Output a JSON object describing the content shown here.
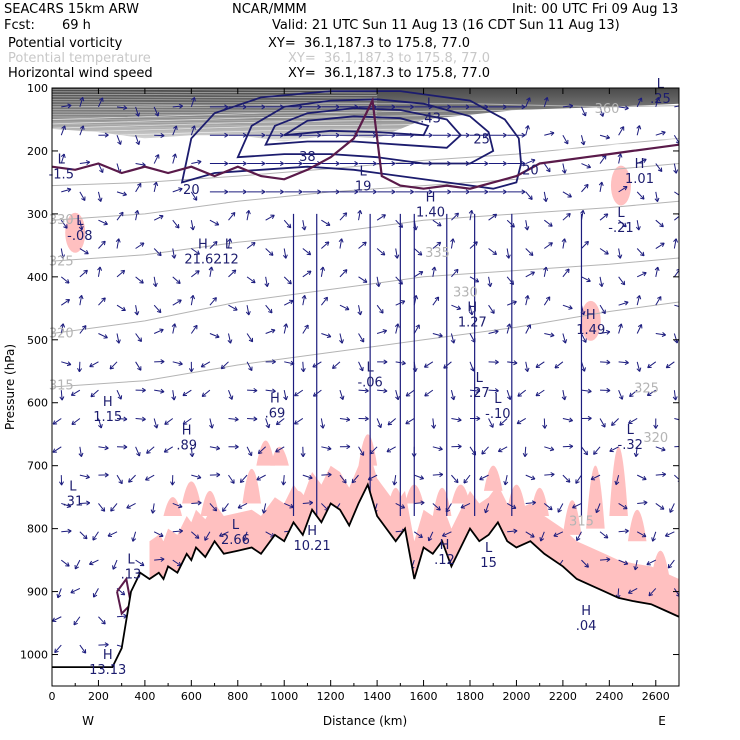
{
  "header": {
    "model": "SEAC4RS 15km ARW",
    "org": "NCAR/MMM",
    "init": "Init: 00 UTC Fri 09 Aug 13",
    "fcst_label": "Fcst:",
    "fcst_value": "69 h",
    "valid": "Valid: 21 UTC Sun 11 Aug 13 (16 CDT Sun 11 Aug 13)",
    "fields": [
      {
        "name": "Potential vorticity",
        "xy": "XY=  36.1,187.3 to 175.8, 77.0",
        "color": "#000000"
      },
      {
        "name": "Potential temperature",
        "xy": "XY=  36.1,187.3 to 175.8, 77.0",
        "color": "#c8c8c8"
      },
      {
        "name": "Horizontal wind speed",
        "xy": "XY=  36.1,187.3 to 175.8, 77.0",
        "color": "#000000"
      }
    ]
  },
  "colors": {
    "terrain": "#000000",
    "pv_fill_low": "#ffc0c0",
    "pv_fill_high": "#505050",
    "pv_contour": "#5a1a4a",
    "theta_contour": "#b4b4b4",
    "wind_contour": "#1c1c6e",
    "vectors": "#1c1c7e"
  },
  "chart_data": {
    "type": "cross-section",
    "xlabel": "Distance (km)",
    "ylabel": "Pressure (hPa)",
    "xlim": [
      0,
      2700
    ],
    "ylim": [
      1050,
      100
    ],
    "x_ticks": [
      0,
      200,
      400,
      600,
      800,
      1000,
      1200,
      1400,
      1600,
      1800,
      2000,
      2200,
      2400,
      2600
    ],
    "y_ticks": [
      100,
      200,
      300,
      400,
      500,
      600,
      700,
      800,
      900,
      1000
    ],
    "x_end_labels": {
      "left": "W",
      "right": "E"
    },
    "terrain": [
      [
        0,
        1020
      ],
      [
        260,
        1020
      ],
      [
        300,
        990
      ],
      [
        340,
        900
      ],
      [
        380,
        870
      ],
      [
        420,
        880
      ],
      [
        460,
        870
      ],
      [
        480,
        880
      ],
      [
        500,
        860
      ],
      [
        540,
        870
      ],
      [
        560,
        855
      ],
      [
        580,
        840
      ],
      [
        600,
        850
      ],
      [
        620,
        830
      ],
      [
        660,
        845
      ],
      [
        700,
        820
      ],
      [
        740,
        840
      ],
      [
        800,
        835
      ],
      [
        860,
        830
      ],
      [
        900,
        840
      ],
      [
        960,
        810
      ],
      [
        1000,
        820
      ],
      [
        1040,
        790
      ],
      [
        1080,
        810
      ],
      [
        1120,
        770
      ],
      [
        1160,
        790
      ],
      [
        1200,
        760
      ],
      [
        1240,
        770
      ],
      [
        1280,
        795
      ],
      [
        1320,
        760
      ],
      [
        1360,
        730
      ],
      [
        1400,
        780
      ],
      [
        1440,
        800
      ],
      [
        1480,
        820
      ],
      [
        1520,
        800
      ],
      [
        1560,
        880
      ],
      [
        1600,
        830
      ],
      [
        1640,
        840
      ],
      [
        1680,
        820
      ],
      [
        1720,
        860
      ],
      [
        1760,
        830
      ],
      [
        1800,
        800
      ],
      [
        1840,
        820
      ],
      [
        1880,
        810
      ],
      [
        1920,
        790
      ],
      [
        1960,
        820
      ],
      [
        2000,
        830
      ],
      [
        2060,
        820
      ],
      [
        2120,
        840
      ],
      [
        2200,
        860
      ],
      [
        2260,
        880
      ],
      [
        2320,
        890
      ],
      [
        2380,
        900
      ],
      [
        2440,
        910
      ],
      [
        2500,
        915
      ],
      [
        2580,
        920
      ],
      [
        2640,
        930
      ],
      [
        2700,
        940
      ]
    ],
    "theta_contours": [
      {
        "label": "315",
        "points": [
          [
            0,
            575
          ],
          [
            400,
            565
          ],
          [
            800,
            540
          ],
          [
            1200,
            520
          ],
          [
            1600,
            500
          ],
          [
            2000,
            480
          ],
          [
            2400,
            455
          ],
          [
            2700,
            440
          ]
        ]
      },
      {
        "label": "320",
        "points": [
          [
            0,
            490
          ],
          [
            400,
            470
          ],
          [
            800,
            440
          ],
          [
            1200,
            420
          ],
          [
            1600,
            400
          ],
          [
            2000,
            390
          ],
          [
            2400,
            380
          ],
          [
            2700,
            370
          ]
        ]
      },
      {
        "label": "325",
        "points": [
          [
            0,
            375
          ],
          [
            400,
            365
          ],
          [
            800,
            345
          ],
          [
            1200,
            330
          ],
          [
            1600,
            310
          ],
          [
            2000,
            300
          ],
          [
            2400,
            290
          ],
          [
            2700,
            280
          ]
        ]
      },
      {
        "label": "330",
        "points": [
          [
            0,
            310
          ],
          [
            400,
            300
          ],
          [
            800,
            280
          ],
          [
            1200,
            265
          ],
          [
            1600,
            255
          ],
          [
            2000,
            245
          ],
          [
            2400,
            230
          ],
          [
            2700,
            220
          ]
        ]
      },
      {
        "label": "335",
        "points": [
          [
            0,
            255
          ],
          [
            400,
            250
          ],
          [
            800,
            240
          ],
          [
            1200,
            228
          ],
          [
            1600,
            215
          ],
          [
            2000,
            205
          ],
          [
            2400,
            190
          ],
          [
            2700,
            180
          ]
        ]
      },
      {
        "label": "360",
        "points": [
          [
            0,
            130
          ],
          [
            600,
            128
          ],
          [
            1200,
            125
          ],
          [
            1800,
            125
          ],
          [
            2400,
            130
          ],
          [
            2700,
            128
          ]
        ]
      }
    ],
    "theta_labels": [
      {
        "text": "315",
        "x": 40,
        "p": 573
      },
      {
        "text": "320",
        "x": 40,
        "p": 490
      },
      {
        "text": "325",
        "x": 40,
        "p": 376
      },
      {
        "text": "330",
        "x": 40,
        "p": 310
      },
      {
        "text": "330",
        "x": 1780,
        "p": 425
      },
      {
        "text": "335",
        "x": 1660,
        "p": 362
      },
      {
        "text": "325",
        "x": 2560,
        "p": 577
      },
      {
        "text": "320",
        "x": 2600,
        "p": 656
      },
      {
        "text": "360",
        "x": 2390,
        "p": 133
      },
      {
        "text": "315",
        "x": 2280,
        "p": 789
      }
    ],
    "wind_contours": [
      {
        "label": "20",
        "points": [
          [
            560,
            250
          ],
          [
            700,
            235
          ],
          [
            900,
            230
          ],
          [
            1100,
            225
          ],
          [
            1300,
            230
          ],
          [
            1500,
            240
          ],
          [
            1700,
            250
          ],
          [
            1900,
            260
          ],
          [
            2000,
            250
          ],
          [
            2020,
            220
          ],
          [
            2010,
            180
          ],
          [
            1950,
            150
          ],
          [
            1800,
            120
          ],
          [
            1500,
            105
          ],
          [
            1200,
            105
          ],
          [
            900,
            115
          ],
          [
            700,
            140
          ],
          [
            600,
            180
          ],
          [
            560,
            250
          ]
        ]
      },
      {
        "label": "25",
        "points": [
          [
            800,
            210
          ],
          [
            1000,
            205
          ],
          [
            1200,
            205
          ],
          [
            1400,
            210
          ],
          [
            1600,
            220
          ],
          [
            1800,
            220
          ],
          [
            1900,
            200
          ],
          [
            1880,
            170
          ],
          [
            1800,
            145
          ],
          [
            1600,
            125
          ],
          [
            1400,
            118
          ],
          [
            1200,
            120
          ],
          [
            1000,
            130
          ],
          [
            860,
            160
          ],
          [
            800,
            210
          ]
        ]
      },
      {
        "label": "30",
        "points": [
          [
            920,
            190
          ],
          [
            1100,
            185
          ],
          [
            1300,
            185
          ],
          [
            1500,
            190
          ],
          [
            1700,
            195
          ],
          [
            1760,
            175
          ],
          [
            1700,
            150
          ],
          [
            1500,
            135
          ],
          [
            1300,
            132
          ],
          [
            1100,
            140
          ],
          [
            960,
            160
          ],
          [
            920,
            190
          ]
        ]
      },
      {
        "label": "35",
        "points": [
          [
            1000,
            175
          ],
          [
            1200,
            168
          ],
          [
            1400,
            170
          ],
          [
            1600,
            175
          ],
          [
            1620,
            160
          ],
          [
            1500,
            148
          ],
          [
            1300,
            145
          ],
          [
            1100,
            152
          ],
          [
            1000,
            175
          ]
        ]
      }
    ],
    "wind_labels": [
      {
        "text": "20",
        "x": 600,
        "p": 262
      },
      {
        "text": "25",
        "x": 1850,
        "p": 182
      },
      {
        "text": "20",
        "x": 2060,
        "p": 231
      },
      {
        "text": "38",
        "x": 1100,
        "p": 210
      }
    ],
    "pv_extrema": [
      {
        "kind": "L",
        "value": "-.08",
        "x": 120,
        "p": 330
      },
      {
        "kind": "H",
        "value": "21.62",
        "x": 650,
        "p": 368
      },
      {
        "kind": "L",
        "value": ".12",
        "x": 760,
        "p": 368
      },
      {
        "kind": "H",
        "value": "1.40",
        "x": 1630,
        "p": 293
      },
      {
        "kind": "H",
        "value": "1.01",
        "x": 2530,
        "p": 240
      },
      {
        "kind": "L",
        "value": "-.21",
        "x": 2450,
        "p": 318
      },
      {
        "kind": "H",
        "value": "1.27",
        "x": 1810,
        "p": 468
      },
      {
        "kind": "H",
        "value": "1.49",
        "x": 2320,
        "p": 480
      },
      {
        "kind": "L",
        "value": "-.06",
        "x": 1370,
        "p": 563
      },
      {
        "kind": "L",
        "value": ".27",
        "x": 1840,
        "p": 580
      },
      {
        "kind": "L",
        "value": "-.10",
        "x": 1920,
        "p": 613
      },
      {
        "kind": "H",
        "value": "1.15",
        "x": 240,
        "p": 618
      },
      {
        "kind": "H",
        "value": ".89",
        "x": 580,
        "p": 663
      },
      {
        "kind": "H",
        "value": ".69",
        "x": 960,
        "p": 612
      },
      {
        "kind": "L",
        "value": "-.32",
        "x": 2490,
        "p": 662
      },
      {
        "kind": "L",
        "value": ".31",
        "x": 90,
        "p": 752
      },
      {
        "kind": "L",
        "value": "2.66",
        "x": 790,
        "p": 813
      },
      {
        "kind": "H",
        "value": "10.21",
        "x": 1120,
        "p": 823
      },
      {
        "kind": "H",
        "value": ".12",
        "x": 1690,
        "p": 845
      },
      {
        "kind": "L",
        "value": "15",
        "x": 1880,
        "p": 850
      },
      {
        "kind": "L",
        "value": ".13",
        "x": 340,
        "p": 868
      },
      {
        "kind": "H",
        "value": ".04",
        "x": 2300,
        "p": 950
      },
      {
        "kind": "H",
        "value": "13.13",
        "x": 240,
        "p": 1020
      },
      {
        "kind": "L",
        "value": "-1.5",
        "x": 40,
        "p": 233
      },
      {
        "kind": "L",
        "value": ".25",
        "x": 2620,
        "p": 113
      },
      {
        "kind": "L",
        "value": ".43",
        "x": 1630,
        "p": 144
      },
      {
        "kind": "L",
        "value": "19",
        "x": 1340,
        "p": 252
      }
    ]
  }
}
